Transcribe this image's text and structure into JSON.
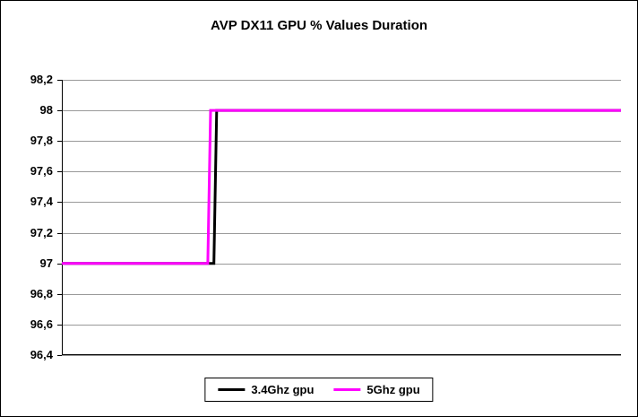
{
  "chart_data": {
    "type": "line",
    "title": "AVP DX11 GPU % Values Duration",
    "xlabel": "",
    "ylabel": "",
    "ylim": [
      96.4,
      98.2
    ],
    "ytick_step": 0.2,
    "yticks": [
      {
        "value": 98.2,
        "label": "98,2"
      },
      {
        "value": 98.0,
        "label": "98"
      },
      {
        "value": 97.8,
        "label": "97,8"
      },
      {
        "value": 97.6,
        "label": "97,6"
      },
      {
        "value": 97.4,
        "label": "97,4"
      },
      {
        "value": 97.2,
        "label": "97,2"
      },
      {
        "value": 97.0,
        "label": "97"
      },
      {
        "value": 96.8,
        "label": "96,8"
      },
      {
        "value": 96.6,
        "label": "96,6"
      },
      {
        "value": 96.4,
        "label": "96,4"
      }
    ],
    "x_axis_labels_visible": false,
    "grid": "horizontal",
    "gridline_color": "#999999",
    "axis_color": "#000000",
    "background_color": "#ffffff",
    "legend_position": "bottom",
    "series": [
      {
        "name": "3.4Ghz gpu",
        "color": "#000000",
        "points": [
          [
            0,
            97
          ],
          [
            0.272,
            97
          ],
          [
            0.277,
            98
          ],
          [
            1,
            98
          ]
        ]
      },
      {
        "name": "5Ghz gpu",
        "color": "#FF00FF",
        "points": [
          [
            0,
            97
          ],
          [
            0.261,
            97
          ],
          [
            0.266,
            98
          ],
          [
            1,
            98
          ]
        ]
      }
    ]
  }
}
